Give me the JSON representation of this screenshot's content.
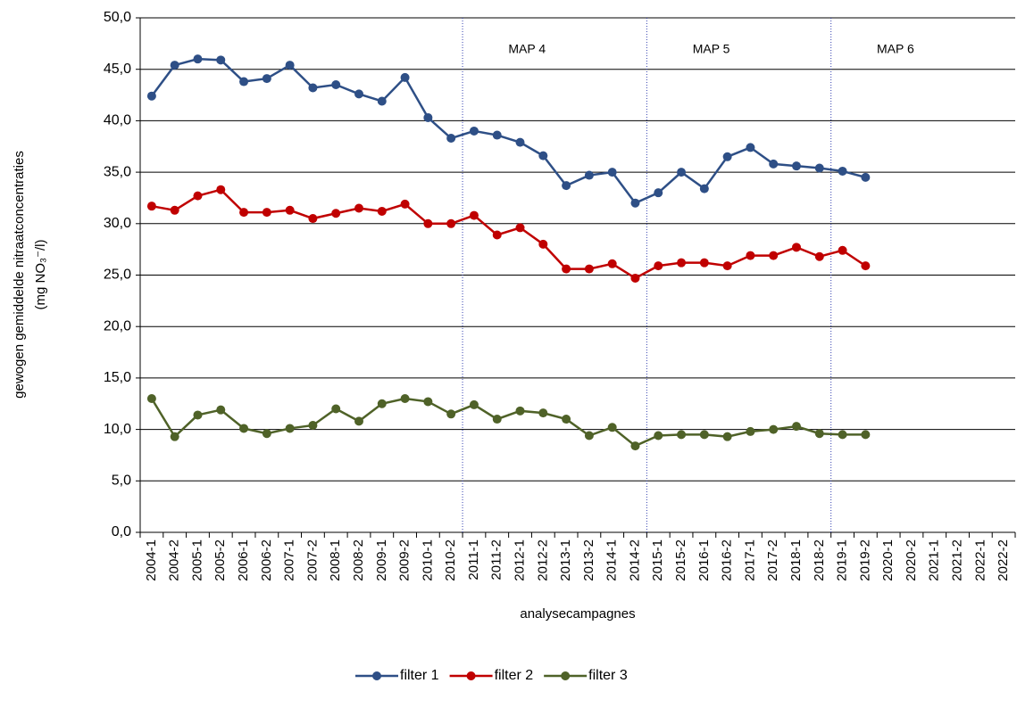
{
  "chart_data": {
    "type": "line",
    "y_label": "gewogen gemiddelde  nitraatconcentraties",
    "y_label_2": "(mg NO₃⁻/l)",
    "x_label": "analysecampagnes",
    "annotations": [
      "MAP 4",
      "MAP 5",
      "MAP 6"
    ],
    "categories": [
      "2004-1",
      "2004-2",
      "2005-1",
      "2005-2",
      "2006-1",
      "2006-2",
      "2007-1",
      "2007-2",
      "2008-1",
      "2008-2",
      "2009-1",
      "2009-2",
      "2010-1",
      "2010-2",
      "2011-1",
      "2011-2",
      "2012-1",
      "2012-2",
      "2013-1",
      "2013-2",
      "2014-1",
      "2014-2",
      "2015-1",
      "2015-2",
      "2016-1",
      "2016-2",
      "2017-1",
      "2017-2",
      "2018-1",
      "2018-2",
      "2019-1",
      "2019-2",
      "2020-1",
      "2020-2",
      "2021-1",
      "2021-2",
      "2022-1",
      "2022-2"
    ],
    "series": [
      {
        "name": "filter 1",
        "color": "#2e4f86",
        "values": [
          42.4,
          45.4,
          46.0,
          45.9,
          43.8,
          44.1,
          45.4,
          43.2,
          43.5,
          42.6,
          41.9,
          44.2,
          40.3,
          38.3,
          39.0,
          38.6,
          37.9,
          36.6,
          33.7,
          34.7,
          35.0,
          32.0,
          33.0,
          35.0,
          33.4,
          36.5,
          37.4,
          35.8,
          35.6,
          35.4,
          35.1,
          34.5,
          null,
          null,
          null,
          null,
          null,
          null
        ]
      },
      {
        "name": "filter 2",
        "color": "#c00000",
        "values": [
          31.7,
          31.3,
          32.7,
          33.3,
          31.1,
          31.1,
          31.3,
          30.5,
          31.0,
          31.5,
          31.2,
          31.9,
          30.0,
          30.0,
          30.8,
          28.9,
          29.6,
          28.0,
          25.6,
          25.6,
          26.1,
          24.7,
          25.9,
          26.2,
          26.2,
          25.9,
          26.9,
          26.9,
          27.7,
          26.8,
          27.4,
          25.9,
          null,
          null,
          null,
          null,
          null,
          null
        ]
      },
      {
        "name": "filter 3",
        "color": "#4f6228",
        "values": [
          13.0,
          9.3,
          11.4,
          11.9,
          10.1,
          9.6,
          10.1,
          10.4,
          12.0,
          10.8,
          12.5,
          13.0,
          12.7,
          11.5,
          12.4,
          11.0,
          11.8,
          11.6,
          11.0,
          9.4,
          10.2,
          8.4,
          9.4,
          9.5,
          9.5,
          9.3,
          9.8,
          10.0,
          10.3,
          9.6,
          9.5,
          9.5,
          null,
          null,
          null,
          null,
          null,
          null
        ]
      }
    ],
    "ylim": [
      0,
      50
    ],
    "yticks": [
      {
        "value": 0,
        "label": "0,0"
      },
      {
        "value": 5,
        "label": "5,0"
      },
      {
        "value": 10,
        "label": "10,0"
      },
      {
        "value": 15,
        "label": "15,0"
      },
      {
        "value": 20,
        "label": "20,0"
      },
      {
        "value": 25,
        "label": "25,0"
      },
      {
        "value": 30,
        "label": "30,0"
      },
      {
        "value": 35,
        "label": "35,0"
      },
      {
        "value": 40,
        "label": "40,0"
      },
      {
        "value": 45,
        "label": "45,0"
      },
      {
        "value": 50,
        "label": "50,0"
      }
    ],
    "grid": true
  }
}
